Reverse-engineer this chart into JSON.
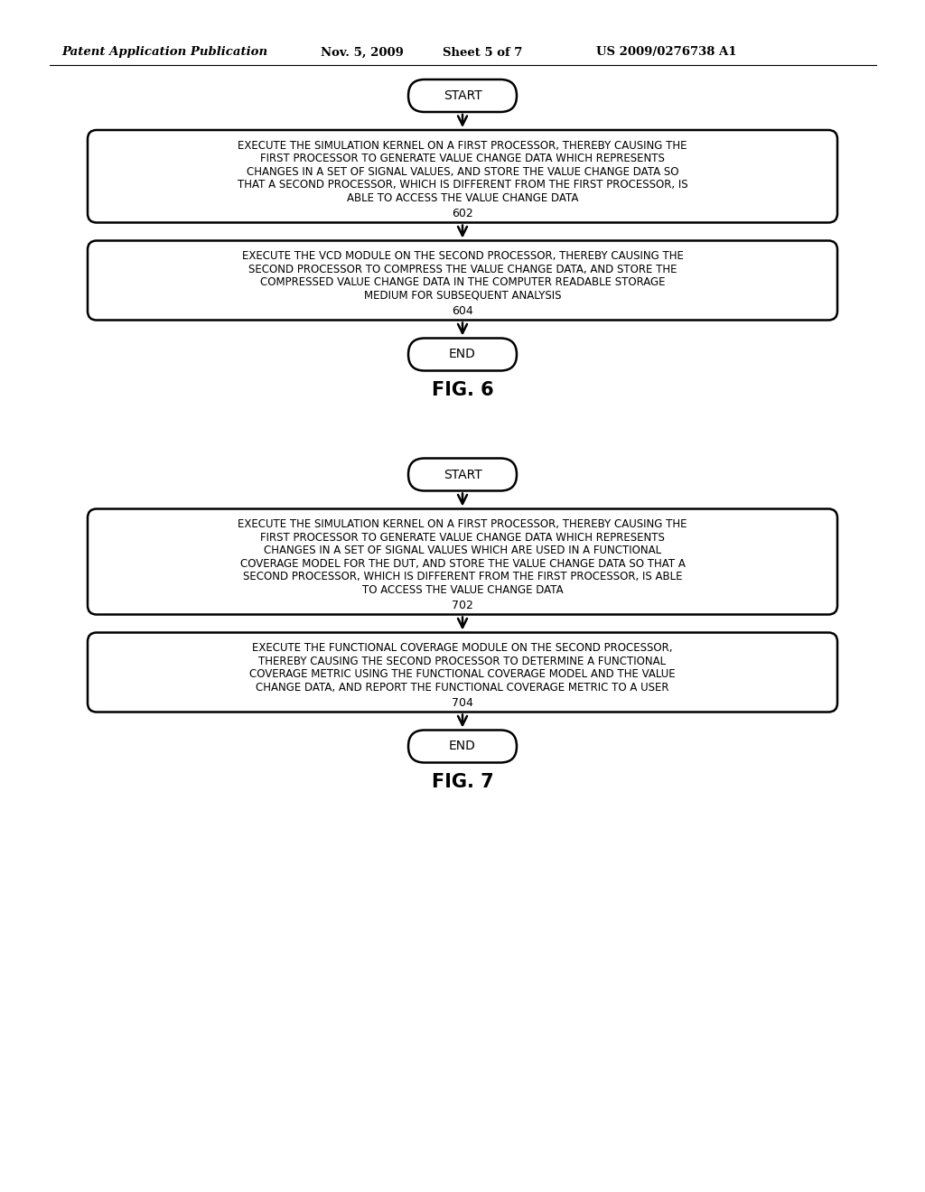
{
  "bg_color": "#ffffff",
  "header_text": "Patent Application Publication",
  "header_date": "Nov. 5, 2009",
  "header_sheet": "Sheet 5 of 7",
  "header_patent": "US 2009/0276738 A1",
  "fig6": {
    "label": "FIG. 6",
    "start_label": "START",
    "end_label": "END",
    "box1_lines": [
      "EXECUTE THE SIMULATION KERNEL ON A FIRST PROCESSOR, THEREBY CAUSING THE",
      "FIRST PROCESSOR TO GENERATE VALUE CHANGE DATA WHICH REPRESENTS",
      "CHANGES IN A SET OF SIGNAL VALUES, AND STORE THE VALUE CHANGE DATA SO",
      "THAT A SECOND PROCESSOR, WHICH IS DIFFERENT FROM THE FIRST PROCESSOR, IS",
      "ABLE TO ACCESS THE VALUE CHANGE DATA"
    ],
    "box1_num": "602",
    "box2_lines": [
      "EXECUTE THE VCD MODULE ON THE SECOND PROCESSOR, THEREBY CAUSING THE",
      "SECOND PROCESSOR TO COMPRESS THE VALUE CHANGE DATA, AND STORE THE",
      "COMPRESSED VALUE CHANGE DATA IN THE COMPUTER READABLE STORAGE",
      "MEDIUM FOR SUBSEQUENT ANALYSIS"
    ],
    "box2_num": "604"
  },
  "fig7": {
    "label": "FIG. 7",
    "start_label": "START",
    "end_label": "END",
    "box1_lines": [
      "EXECUTE THE SIMULATION KERNEL ON A FIRST PROCESSOR, THEREBY CAUSING THE",
      "FIRST PROCESSOR TO GENERATE VALUE CHANGE DATA WHICH REPRESENTS",
      "CHANGES IN A SET OF SIGNAL VALUES WHICH ARE USED IN A FUNCTIONAL",
      "COVERAGE MODEL FOR THE DUT, AND STORE THE VALUE CHANGE DATA SO THAT A",
      "SECOND PROCESSOR, WHICH IS DIFFERENT FROM THE FIRST PROCESSOR, IS ABLE",
      "TO ACCESS THE VALUE CHANGE DATA"
    ],
    "box1_num": "702",
    "box2_lines": [
      "EXECUTE THE FUNCTIONAL COVERAGE MODULE ON THE SECOND PROCESSOR,",
      "THEREBY CAUSING THE SECOND PROCESSOR TO DETERMINE A FUNCTIONAL",
      "COVERAGE METRIC USING THE FUNCTIONAL COVERAGE MODEL AND THE VALUE",
      "CHANGE DATA, AND REPORT THE FUNCTIONAL COVERAGE METRIC TO A USER"
    ],
    "box2_num": "704"
  }
}
